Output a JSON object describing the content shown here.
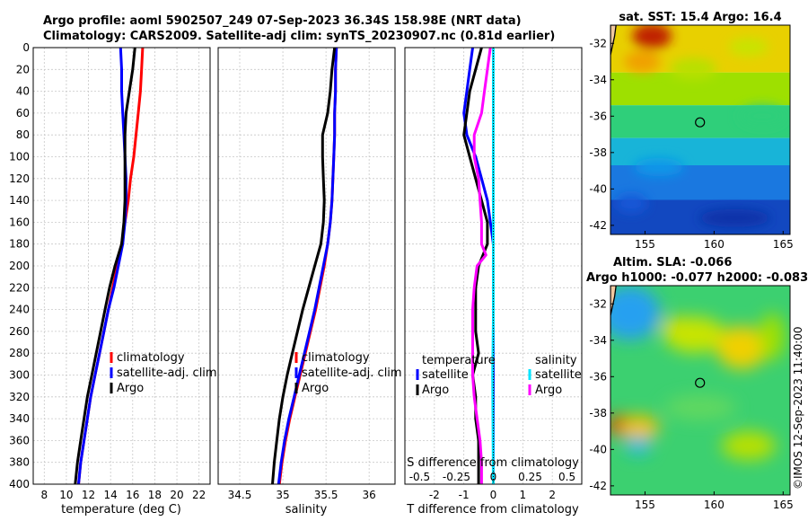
{
  "titles": {
    "line1": "Argo profile: aoml 5902507_249 07-Sep-2023 36.34S 158.98E (NRT data)",
    "line2": "Climatology: CARS2009. Satellite-adj clim: synTS_20230907.nc (0.81d earlier)"
  },
  "colors": {
    "climatology": "#ff0000",
    "satellite": "#0000ff",
    "argo": "#000000",
    "sal_satellite": "#00e5ff",
    "sal_argo": "#ff00ff"
  },
  "depth_ticks": [
    "0",
    "20",
    "40",
    "60",
    "80",
    "100",
    "120",
    "140",
    "160",
    "180",
    "200",
    "220",
    "240",
    "260",
    "280",
    "300",
    "320",
    "340",
    "360",
    "380",
    "400"
  ],
  "chart_data": [
    {
      "type": "line",
      "name": "temperature",
      "xlabel": "temperature (deg C)",
      "ylabel": "depth",
      "xlim": [
        7,
        23
      ],
      "ylim": [
        400,
        0
      ],
      "xticks": [
        "8",
        "10",
        "12",
        "14",
        "16",
        "18",
        "20",
        "22"
      ],
      "legend": [
        "climatology",
        "satellite-adj. clim",
        "Argo"
      ],
      "series": [
        {
          "name": "climatology",
          "points": [
            [
              16.9,
              0
            ],
            [
              16.8,
              20
            ],
            [
              16.7,
              40
            ],
            [
              16.5,
              60
            ],
            [
              16.3,
              80
            ],
            [
              16.1,
              100
            ],
            [
              15.8,
              120
            ],
            [
              15.6,
              140
            ],
            [
              15.3,
              160
            ],
            [
              15.0,
              180
            ],
            [
              14.6,
              200
            ],
            [
              14.2,
              220
            ],
            [
              13.8,
              240
            ],
            [
              13.4,
              260
            ],
            [
              13.0,
              280
            ],
            [
              12.6,
              300
            ],
            [
              12.2,
              320
            ],
            [
              11.9,
              340
            ],
            [
              11.6,
              360
            ],
            [
              11.3,
              380
            ],
            [
              11.1,
              400
            ]
          ]
        },
        {
          "name": "satellite-adj. clim",
          "points": [
            [
              14.9,
              0
            ],
            [
              15.0,
              20
            ],
            [
              15.0,
              40
            ],
            [
              15.1,
              60
            ],
            [
              15.2,
              80
            ],
            [
              15.3,
              100
            ],
            [
              15.4,
              120
            ],
            [
              15.4,
              140
            ],
            [
              15.3,
              160
            ],
            [
              15.1,
              180
            ],
            [
              14.7,
              200
            ],
            [
              14.3,
              220
            ],
            [
              13.8,
              240
            ],
            [
              13.4,
              260
            ],
            [
              13.0,
              280
            ],
            [
              12.6,
              300
            ],
            [
              12.2,
              320
            ],
            [
              11.9,
              340
            ],
            [
              11.6,
              360
            ],
            [
              11.3,
              380
            ],
            [
              11.1,
              400
            ]
          ]
        },
        {
          "name": "Argo",
          "points": [
            [
              16.2,
              0
            ],
            [
              16.0,
              20
            ],
            [
              15.7,
              40
            ],
            [
              15.4,
              60
            ],
            [
              15.3,
              80
            ],
            [
              15.3,
              100
            ],
            [
              15.3,
              120
            ],
            [
              15.3,
              140
            ],
            [
              15.2,
              160
            ],
            [
              15.0,
              180
            ],
            [
              14.4,
              200
            ],
            [
              13.9,
              220
            ],
            [
              13.5,
              240
            ],
            [
              13.1,
              260
            ],
            [
              12.7,
              280
            ],
            [
              12.3,
              300
            ],
            [
              11.9,
              320
            ],
            [
              11.6,
              340
            ],
            [
              11.3,
              360
            ],
            [
              11.0,
              380
            ],
            [
              10.8,
              400
            ]
          ]
        }
      ]
    },
    {
      "type": "line",
      "name": "salinity",
      "xlabel": "salinity",
      "ylabel": "depth",
      "xlim": [
        34.25,
        36.3
      ],
      "ylim": [
        400,
        0
      ],
      "xticks": [
        "34.5",
        "35",
        "35.5",
        "36"
      ],
      "legend": [
        "climatology",
        "satellite-adj. clim",
        "Argo"
      ],
      "series": [
        {
          "name": "climatology",
          "points": [
            [
              35.62,
              0
            ],
            [
              35.61,
              20
            ],
            [
              35.61,
              40
            ],
            [
              35.6,
              60
            ],
            [
              35.6,
              80
            ],
            [
              35.59,
              100
            ],
            [
              35.58,
              120
            ],
            [
              35.57,
              140
            ],
            [
              35.55,
              160
            ],
            [
              35.52,
              180
            ],
            [
              35.48,
              200
            ],
            [
              35.43,
              220
            ],
            [
              35.38,
              240
            ],
            [
              35.32,
              260
            ],
            [
              35.26,
              280
            ],
            [
              35.2,
              300
            ],
            [
              35.14,
              320
            ],
            [
              35.08,
              340
            ],
            [
              35.03,
              360
            ],
            [
              34.99,
              380
            ],
            [
              34.96,
              400
            ]
          ]
        },
        {
          "name": "satellite-adj. clim",
          "points": [
            [
              35.62,
              0
            ],
            [
              35.61,
              20
            ],
            [
              35.61,
              40
            ],
            [
              35.6,
              60
            ],
            [
              35.6,
              80
            ],
            [
              35.59,
              100
            ],
            [
              35.58,
              120
            ],
            [
              35.57,
              140
            ],
            [
              35.55,
              160
            ],
            [
              35.52,
              180
            ],
            [
              35.47,
              200
            ],
            [
              35.42,
              220
            ],
            [
              35.37,
              240
            ],
            [
              35.31,
              260
            ],
            [
              35.25,
              280
            ],
            [
              35.19,
              300
            ],
            [
              35.13,
              320
            ],
            [
              35.07,
              340
            ],
            [
              35.02,
              360
            ],
            [
              34.98,
              380
            ],
            [
              34.95,
              400
            ]
          ]
        },
        {
          "name": "Argo",
          "points": [
            [
              35.6,
              0
            ],
            [
              35.57,
              20
            ],
            [
              35.55,
              40
            ],
            [
              35.52,
              60
            ],
            [
              35.46,
              80
            ],
            [
              35.46,
              100
            ],
            [
              35.47,
              120
            ],
            [
              35.48,
              140
            ],
            [
              35.47,
              160
            ],
            [
              35.44,
              180
            ],
            [
              35.37,
              200
            ],
            [
              35.3,
              220
            ],
            [
              35.23,
              240
            ],
            [
              35.17,
              260
            ],
            [
              35.11,
              280
            ],
            [
              35.05,
              300
            ],
            [
              35.0,
              320
            ],
            [
              34.96,
              340
            ],
            [
              34.93,
              360
            ],
            [
              34.9,
              380
            ],
            [
              34.88,
              400
            ]
          ]
        }
      ]
    },
    {
      "type": "line",
      "name": "difference",
      "xlabel": "T difference from climatology",
      "xlabel2": "S difference from climatology",
      "ylabel": "depth",
      "xlim": [
        -3,
        3
      ],
      "ylim": [
        400,
        0
      ],
      "xticks": [
        "-2",
        "-1",
        "0",
        "1",
        "2"
      ],
      "xticks2": [
        "-0.5",
        "-0.25",
        "0",
        "0.25",
        "0.5"
      ],
      "legend_t": {
        "heading": "temperature",
        "items": [
          "satellite",
          "Argo"
        ]
      },
      "legend_s": {
        "heading": "salinity",
        "items": [
          "satellite",
          "Argo"
        ]
      },
      "series": [
        {
          "name": "T satellite",
          "points": [
            [
              -0.7,
              0
            ],
            [
              -0.8,
              20
            ],
            [
              -0.9,
              40
            ],
            [
              -1.0,
              60
            ],
            [
              -0.9,
              80
            ],
            [
              -0.6,
              100
            ],
            [
              -0.4,
              120
            ],
            [
              -0.2,
              140
            ],
            [
              -0.1,
              160
            ],
            [
              0.0,
              180
            ],
            [
              0.0,
              200
            ],
            [
              0.0,
              250
            ],
            [
              0.0,
              300
            ],
            [
              0.0,
              400
            ]
          ]
        },
        {
          "name": "T Argo",
          "points": [
            [
              -0.4,
              0
            ],
            [
              -0.6,
              20
            ],
            [
              -0.8,
              40
            ],
            [
              -0.9,
              60
            ],
            [
              -1.0,
              80
            ],
            [
              -0.8,
              100
            ],
            [
              -0.6,
              120
            ],
            [
              -0.4,
              140
            ],
            [
              -0.2,
              160
            ],
            [
              -0.2,
              180
            ],
            [
              -0.5,
              200
            ],
            [
              -0.6,
              220
            ],
            [
              -0.6,
              240
            ],
            [
              -0.6,
              260
            ],
            [
              -0.5,
              280
            ],
            [
              -0.7,
              300
            ],
            [
              -0.6,
              320
            ],
            [
              -0.6,
              340
            ],
            [
              -0.5,
              360
            ],
            [
              -0.5,
              380
            ],
            [
              -0.5,
              400
            ]
          ]
        },
        {
          "name": "S satellite",
          "points": [
            [
              0.0,
              0
            ],
            [
              0.0,
              100
            ],
            [
              0.0,
              200
            ],
            [
              0.0,
              250
            ],
            [
              -0.005,
              300
            ],
            [
              0.0,
              400
            ]
          ]
        },
        {
          "name": "S Argo",
          "points": [
            [
              -0.02,
              0
            ],
            [
              -0.04,
              20
            ],
            [
              -0.06,
              40
            ],
            [
              -0.08,
              60
            ],
            [
              -0.13,
              80
            ],
            [
              -0.13,
              100
            ],
            [
              -0.1,
              120
            ],
            [
              -0.09,
              140
            ],
            [
              -0.08,
              160
            ],
            [
              -0.08,
              180
            ],
            [
              -0.05,
              190
            ],
            [
              -0.11,
              200
            ],
            [
              -0.13,
              220
            ],
            [
              -0.14,
              240
            ],
            [
              -0.14,
              260
            ],
            [
              -0.14,
              280
            ],
            [
              -0.14,
              300
            ],
            [
              -0.13,
              320
            ],
            [
              -0.11,
              340
            ],
            [
              -0.09,
              360
            ],
            [
              -0.08,
              380
            ],
            [
              -0.08,
              400
            ]
          ]
        }
      ]
    },
    {
      "type": "heatmap",
      "name": "sst-map",
      "title": "sat. SST: 15.4 Argo: 16.4",
      "xlim": [
        152.5,
        165.5
      ],
      "ylim": [
        -42.5,
        -31
      ],
      "xticks": [
        "155",
        "160",
        "165"
      ],
      "yticks": [
        "-32",
        "-34",
        "-36",
        "-38",
        "-40",
        "-42"
      ],
      "marker": [
        158.98,
        -36.34
      ]
    },
    {
      "type": "heatmap",
      "name": "sla-map",
      "title1": "Altim. SLA: -0.066",
      "title2": "Argo h1000: -0.077 h2000: -0.083",
      "xlim": [
        152.5,
        165.5
      ],
      "ylim": [
        -42.5,
        -31
      ],
      "xticks": [
        "155",
        "160",
        "165"
      ],
      "yticks": [
        "-32",
        "-34",
        "-36",
        "-38",
        "-40",
        "-42"
      ],
      "marker": [
        158.98,
        -36.34
      ]
    }
  ],
  "copyright": "©IMOS 12-Sep-2023 11:40:00"
}
